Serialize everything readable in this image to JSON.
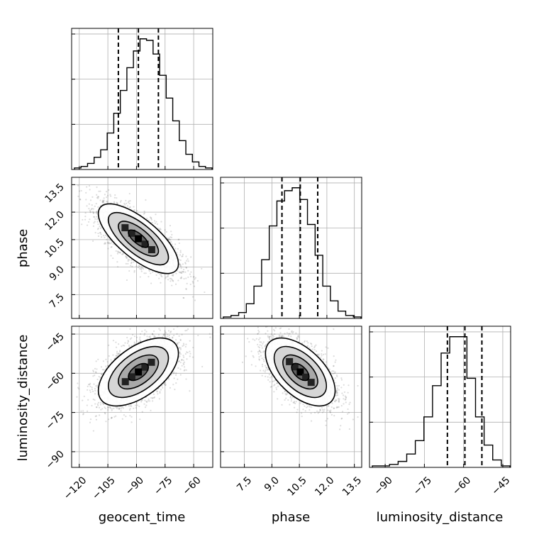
{
  "chart_data": {
    "type": "corner",
    "parameters": [
      "geocent_time",
      "phase",
      "luminosity_distance"
    ],
    "ranges": {
      "geocent_time": [
        -124,
        -50
      ],
      "phase": [
        6.2,
        13.9
      ],
      "luminosity_distance": [
        -96,
        -42
      ]
    },
    "ticks": {
      "geocent_time": {
        "values": [
          -120,
          -105,
          -90,
          -75,
          -60
        ],
        "labels": [
          "−120",
          "−105",
          "−90",
          "−75",
          "−60"
        ]
      },
      "phase": {
        "values": [
          7.5,
          9.0,
          10.5,
          12.0,
          13.5
        ],
        "labels": [
          "7.5",
          "9.0",
          "10.5",
          "12.0",
          "13.5"
        ]
      },
      "luminosity_distance": {
        "values": [
          -90,
          -75,
          -60,
          -45
        ],
        "labels": [
          "−90",
          "−75",
          "−60",
          "−45"
        ]
      }
    },
    "quantiles": {
      "geocent_time": [
        -99.5,
        -89,
        -78.5
      ],
      "phase": [
        9.55,
        10.55,
        11.5
      ],
      "luminosity_distance": [
        -66.2,
        -59.5,
        -53.0
      ]
    },
    "histograms": {
      "geocent_time": [
        1,
        2,
        4,
        8,
        13,
        24,
        37,
        52,
        67,
        78,
        86,
        85,
        76,
        62,
        47,
        32,
        19,
        10,
        5,
        2,
        1
      ],
      "phase": [
        1,
        2,
        4,
        10,
        22,
        40,
        63,
        80,
        87,
        89,
        81,
        64,
        43,
        22,
        12,
        5,
        2,
        1
      ],
      "luminosity_distance": [
        1,
        1,
        2,
        4,
        9,
        18,
        34,
        55,
        77,
        88,
        88,
        60,
        34,
        15,
        5,
        1
      ]
    },
    "grid": true,
    "legend": "none"
  }
}
